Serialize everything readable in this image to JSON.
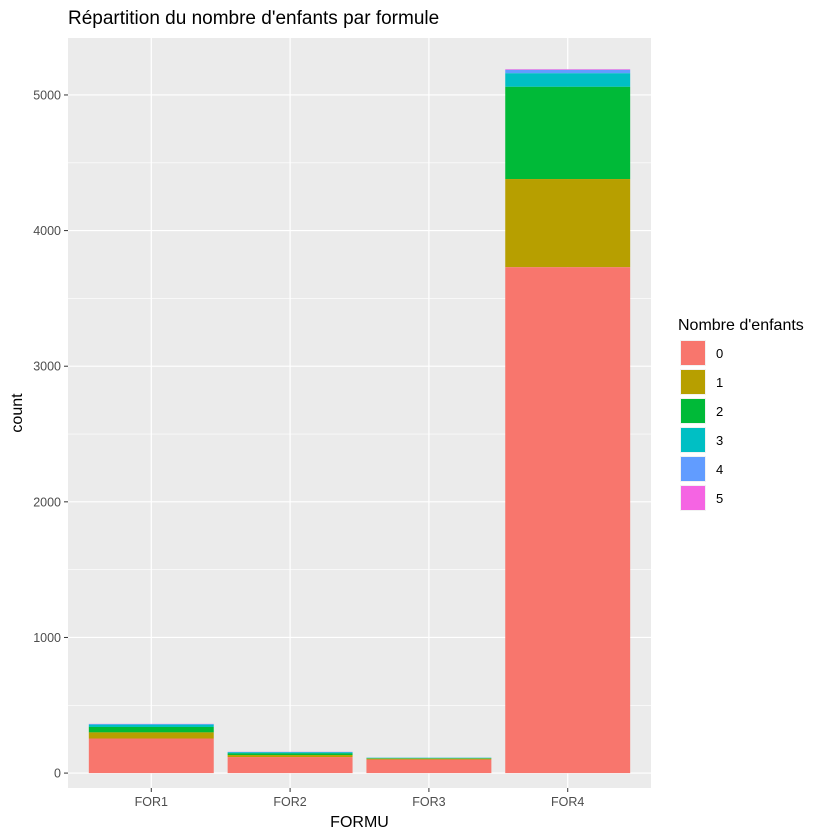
{
  "chart_data": {
    "type": "bar",
    "stacked": true,
    "title": "Répartition du nombre d'enfants par formule",
    "xlabel": "FORMU",
    "ylabel": "count",
    "categories": [
      "FOR1",
      "FOR2",
      "FOR3",
      "FOR4"
    ],
    "ylim": [
      -110,
      5420
    ],
    "yticks": [
      0,
      1000,
      2000,
      3000,
      4000,
      5000
    ],
    "yticks_minor": [
      500,
      1500,
      2500,
      3500,
      4500
    ],
    "grid": true,
    "legend": {
      "title": "Nombre d'enfants",
      "position": "right"
    },
    "series": [
      {
        "name": "0",
        "color": "#F8766D",
        "values": [
          255,
          118,
          100,
          3730
        ]
      },
      {
        "name": "1",
        "color": "#B79F00",
        "values": [
          45,
          15,
          6,
          650
        ]
      },
      {
        "name": "2",
        "color": "#00BA38",
        "values": [
          40,
          12,
          4,
          680
        ]
      },
      {
        "name": "3",
        "color": "#00BFC4",
        "values": [
          17,
          8,
          3,
          100
        ]
      },
      {
        "name": "4",
        "color": "#619CFF",
        "values": [
          5,
          3,
          1,
          25
        ]
      },
      {
        "name": "5",
        "color": "#F564E3",
        "values": [
          1,
          1,
          0,
          5
        ]
      }
    ]
  }
}
